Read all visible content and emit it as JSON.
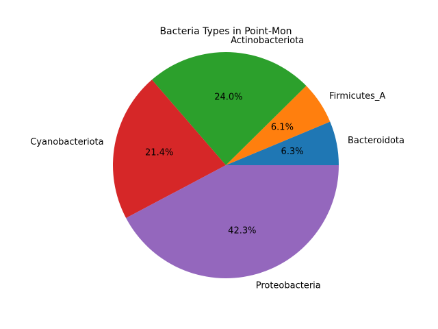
{
  "chart_data": {
    "type": "pie",
    "title": "Bacteria Types in Point-Mon",
    "categories": [
      "Bacteroidota",
      "Firmicutes_A",
      "Actinobacteriota",
      "Cyanobacteriota",
      "Proteobacteria"
    ],
    "values": [
      6.3,
      6.1,
      24.0,
      21.4,
      42.3
    ],
    "value_labels": [
      "6.3%",
      "6.1%",
      "24.0%",
      "21.4%",
      "42.3%"
    ],
    "colors": [
      "#1f77b4",
      "#ff7f0e",
      "#2ca02c",
      "#d62728",
      "#9467bd"
    ],
    "start_angle_deg": 0,
    "direction": "counterclockwise",
    "legend": "none"
  }
}
